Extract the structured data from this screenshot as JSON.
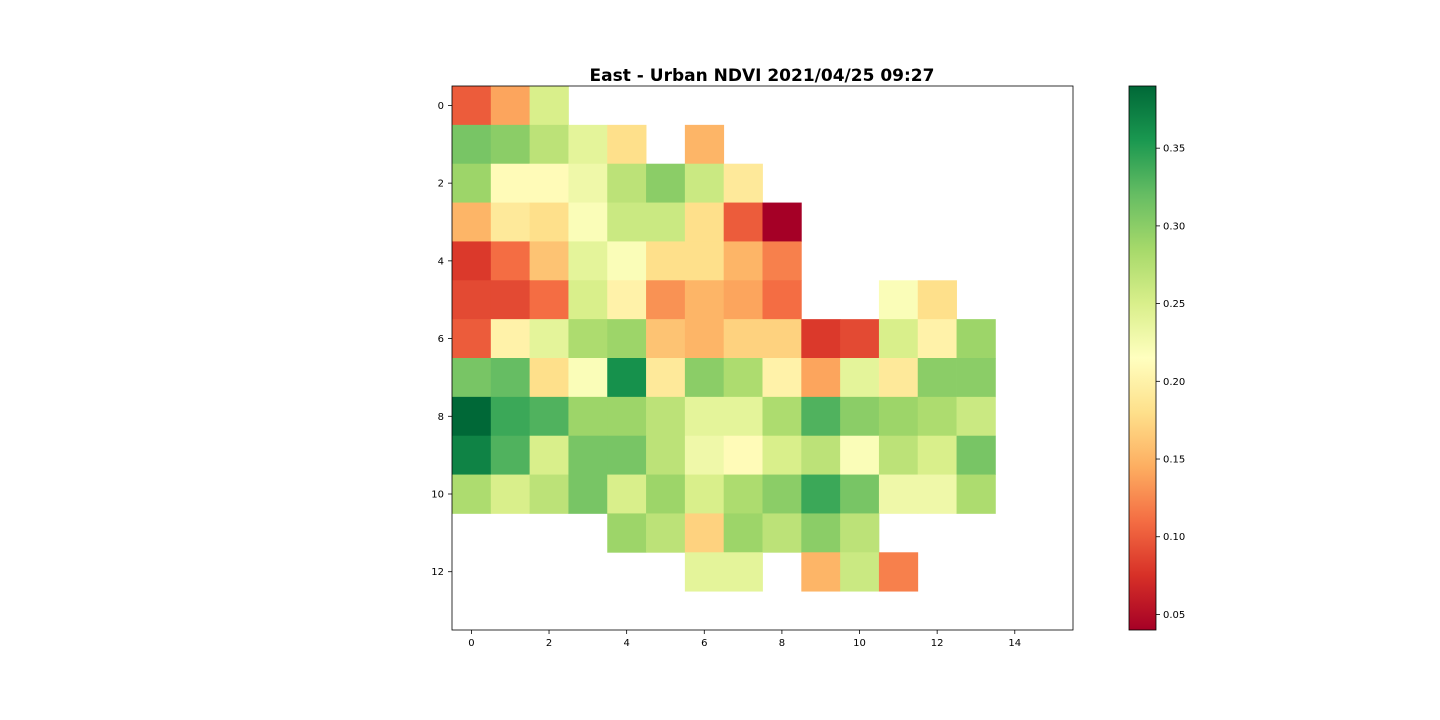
{
  "chart_data": {
    "type": "heatmap",
    "title": "East - Urban NDVI 2021/04/25 09:27",
    "xlabel": "",
    "ylabel": "",
    "xlim": [
      -0.5,
      15.5
    ],
    "ylim": [
      13.5,
      -0.5
    ],
    "x_ticks": [
      "0",
      "2",
      "4",
      "6",
      "8",
      "10",
      "12",
      "14"
    ],
    "y_ticks": [
      "0",
      "2",
      "4",
      "6",
      "8",
      "10",
      "12"
    ],
    "colormap": "RdYlGn",
    "colorbar": {
      "range": [
        0.04,
        0.39
      ],
      "ticks": [
        "0.05",
        "0.10",
        "0.15",
        "0.20",
        "0.25",
        "0.30",
        "0.35"
      ],
      "placement": "right"
    },
    "grid": false,
    "values": [
      [
        0.1,
        0.14,
        0.25,
        null,
        null,
        null,
        null,
        null,
        null,
        null,
        null,
        null,
        null,
        null,
        null,
        null
      ],
      [
        0.31,
        0.3,
        0.27,
        0.24,
        0.18,
        null,
        0.15,
        null,
        null,
        null,
        null,
        null,
        null,
        null,
        null,
        null
      ],
      [
        0.29,
        0.21,
        0.21,
        0.23,
        0.27,
        0.3,
        0.26,
        0.19,
        null,
        null,
        null,
        null,
        null,
        null,
        null,
        null
      ],
      [
        0.15,
        0.19,
        0.18,
        0.22,
        0.26,
        0.26,
        0.18,
        0.1,
        0.04,
        null,
        null,
        null,
        null,
        null,
        null,
        null
      ],
      [
        0.08,
        0.11,
        0.16,
        0.24,
        0.22,
        0.18,
        0.18,
        0.15,
        0.12,
        null,
        null,
        null,
        null,
        null,
        null,
        null
      ],
      [
        0.09,
        0.09,
        0.11,
        0.25,
        0.2,
        0.13,
        0.15,
        0.14,
        0.11,
        null,
        null,
        0.22,
        0.18,
        null,
        null,
        null
      ],
      [
        0.1,
        0.2,
        0.24,
        0.28,
        0.29,
        0.16,
        0.15,
        0.17,
        0.17,
        0.08,
        0.09,
        0.25,
        0.2,
        0.29,
        null,
        null
      ],
      [
        0.31,
        0.32,
        0.18,
        0.22,
        0.36,
        0.19,
        0.3,
        0.28,
        0.2,
        0.14,
        0.24,
        0.19,
        0.3,
        0.3,
        null,
        null
      ],
      [
        0.39,
        0.34,
        0.33,
        0.29,
        0.29,
        0.27,
        0.24,
        0.24,
        0.28,
        0.33,
        0.3,
        0.29,
        0.28,
        0.26,
        null,
        null
      ],
      [
        0.37,
        0.33,
        0.25,
        0.31,
        0.31,
        0.27,
        0.23,
        0.21,
        0.25,
        0.27,
        0.22,
        0.27,
        0.25,
        0.31,
        null,
        null
      ],
      [
        0.28,
        0.25,
        0.27,
        0.31,
        0.25,
        0.29,
        0.25,
        0.28,
        0.3,
        0.34,
        0.31,
        0.23,
        0.23,
        0.28,
        null,
        null
      ],
      [
        null,
        null,
        null,
        null,
        0.29,
        0.27,
        0.17,
        0.29,
        0.27,
        0.3,
        0.27,
        null,
        null,
        null,
        null,
        null
      ],
      [
        null,
        null,
        null,
        null,
        null,
        null,
        0.24,
        0.24,
        null,
        0.15,
        0.26,
        0.12,
        null,
        null,
        null,
        null
      ],
      [
        null,
        null,
        null,
        null,
        null,
        null,
        null,
        null,
        null,
        null,
        null,
        null,
        null,
        null,
        null,
        null
      ]
    ]
  }
}
